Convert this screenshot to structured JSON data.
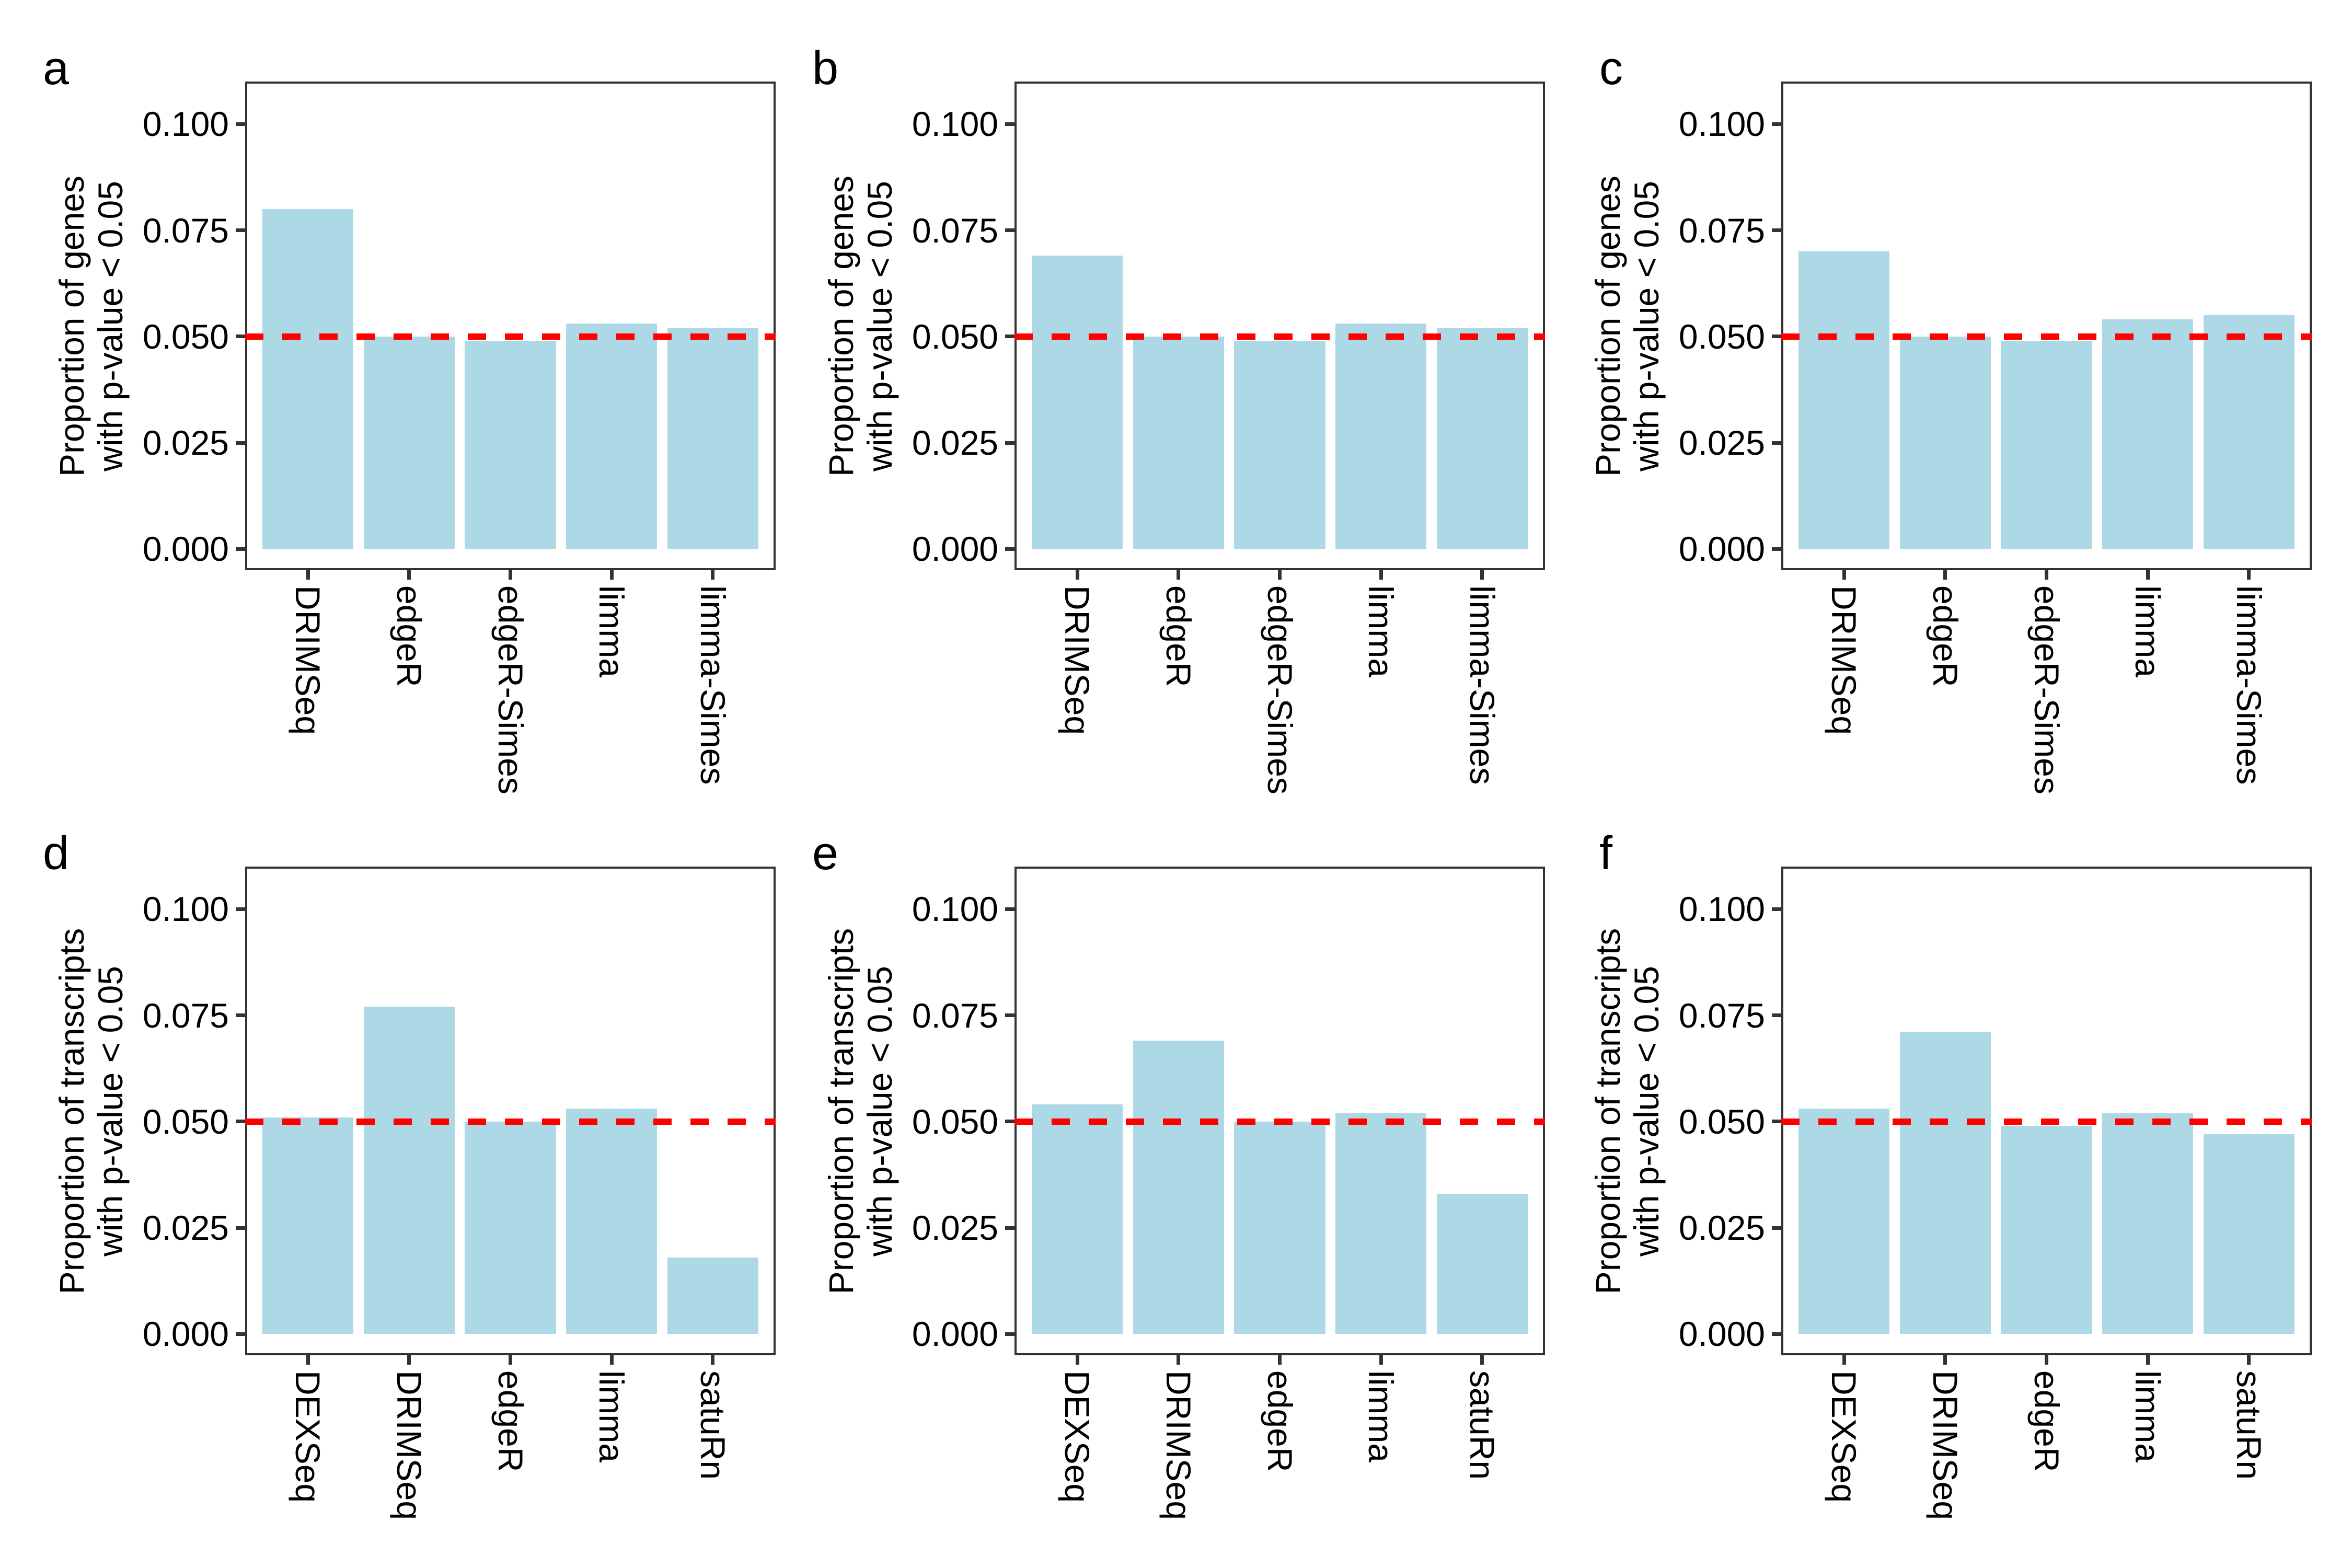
{
  "figure": {
    "background": "#ffffff",
    "bar_fill": "#ADD8E6",
    "reference_line_color": "#FF0000",
    "panel_border_color": "#333333",
    "tick_color": "#333333",
    "text_color": "#000000",
    "reference_value": 0.05,
    "y_tick_labels": [
      "0.000",
      "0.025",
      "0.050",
      "0.075",
      "0.100"
    ],
    "y_tick_values": [
      0,
      0.025,
      0.05,
      0.075,
      0.1
    ]
  },
  "chart_data": [
    {
      "panel": "a",
      "type": "bar",
      "ylabel": "Proportion of genes\nwith p-value < 0.05",
      "categories": [
        "DRIMSeq",
        "edgeR",
        "edgeR-Simes",
        "limma",
        "limma-Simes"
      ],
      "values": [
        0.08,
        0.05,
        0.049,
        0.053,
        0.052
      ],
      "reference_line": 0.05,
      "ylim": [
        0,
        0.11
      ],
      "grid": false,
      "legend": "none"
    },
    {
      "panel": "b",
      "type": "bar",
      "ylabel": "Proportion of genes\nwith p-value < 0.05",
      "categories": [
        "DRIMSeq",
        "edgeR",
        "edgeR-Simes",
        "limma",
        "limma-Simes"
      ],
      "values": [
        0.069,
        0.05,
        0.049,
        0.053,
        0.052
      ],
      "reference_line": 0.05,
      "ylim": [
        0,
        0.11
      ],
      "grid": false,
      "legend": "none"
    },
    {
      "panel": "c",
      "type": "bar",
      "ylabel": "Proportion of genes\nwith p-value < 0.05",
      "categories": [
        "DRIMSeq",
        "edgeR",
        "edgeR-Simes",
        "limma",
        "limma-Simes"
      ],
      "values": [
        0.07,
        0.05,
        0.049,
        0.054,
        0.055
      ],
      "reference_line": 0.05,
      "ylim": [
        0,
        0.11
      ],
      "grid": false,
      "legend": "none"
    },
    {
      "panel": "d",
      "type": "bar",
      "ylabel": "Proportion of transcripts\nwith p-value < 0.05",
      "categories": [
        "DEXSeq",
        "DRIMSeq",
        "edgeR",
        "limma",
        "satuRn"
      ],
      "values": [
        0.051,
        0.077,
        0.05,
        0.053,
        0.018
      ],
      "reference_line": 0.05,
      "ylim": [
        0,
        0.11
      ],
      "grid": false,
      "legend": "none"
    },
    {
      "panel": "e",
      "type": "bar",
      "ylabel": "Proportion of transcripts\nwith p-value < 0.05",
      "categories": [
        "DEXSeq",
        "DRIMSeq",
        "edgeR",
        "limma",
        "satuRn"
      ],
      "values": [
        0.054,
        0.069,
        0.05,
        0.052,
        0.033
      ],
      "reference_line": 0.05,
      "ylim": [
        0,
        0.11
      ],
      "grid": false,
      "legend": "none"
    },
    {
      "panel": "f",
      "type": "bar",
      "ylabel": "Proportion of transcripts\nwith p-value < 0.05",
      "categories": [
        "DEXSeq",
        "DRIMSeq",
        "edgeR",
        "limma",
        "satuRn"
      ],
      "values": [
        0.053,
        0.071,
        0.049,
        0.052,
        0.047
      ],
      "reference_line": 0.05,
      "ylim": [
        0,
        0.11
      ],
      "grid": false,
      "legend": "none"
    }
  ]
}
